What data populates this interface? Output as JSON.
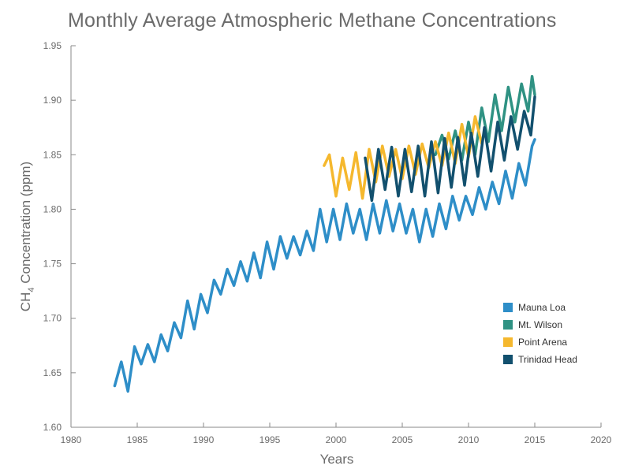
{
  "chart_data": {
    "type": "line",
    "title": "Monthly Average Atmospheric Methane Concentrations",
    "xlabel": "Years",
    "ylabel_main": "CH",
    "ylabel_sub": "4",
    "ylabel_rest": " Concentration (ppm)",
    "xlim": [
      1980,
      2020
    ],
    "ylim": [
      1.6,
      1.95
    ],
    "x_ticks": [
      1980,
      1985,
      1990,
      1995,
      2000,
      2005,
      2010,
      2015,
      2020
    ],
    "y_ticks": [
      "1.60",
      "1.65",
      "1.70",
      "1.75",
      "1.80",
      "1.85",
      "1.90",
      "1.95"
    ],
    "legend_position": "right",
    "grid": false,
    "series": [
      {
        "name": "Mauna Loa",
        "color": "#2e8ec8",
        "x": [
          1983.3,
          1983.8,
          1984.3,
          1984.8,
          1985.3,
          1985.8,
          1986.3,
          1986.8,
          1987.3,
          1987.8,
          1988.3,
          1988.8,
          1989.3,
          1989.8,
          1990.3,
          1990.8,
          1991.3,
          1991.8,
          1992.3,
          1992.8,
          1993.3,
          1993.8,
          1994.3,
          1994.8,
          1995.3,
          1995.8,
          1996.3,
          1996.8,
          1997.3,
          1997.8,
          1998.3,
          1998.8,
          1999.3,
          1999.8,
          2000.3,
          2000.8,
          2001.3,
          2001.8,
          2002.3,
          2002.8,
          2003.3,
          2003.8,
          2004.3,
          2004.8,
          2005.3,
          2005.8,
          2006.3,
          2006.8,
          2007.3,
          2007.8,
          2008.3,
          2008.8,
          2009.3,
          2009.8,
          2010.3,
          2010.8,
          2011.3,
          2011.8,
          2012.3,
          2012.8,
          2013.3,
          2013.8,
          2014.3,
          2014.8,
          2015.0
        ],
        "y": [
          1.638,
          1.66,
          1.633,
          1.674,
          1.658,
          1.676,
          1.66,
          1.685,
          1.67,
          1.696,
          1.682,
          1.716,
          1.69,
          1.722,
          1.705,
          1.735,
          1.722,
          1.745,
          1.73,
          1.752,
          1.734,
          1.76,
          1.737,
          1.77,
          1.745,
          1.775,
          1.755,
          1.775,
          1.758,
          1.78,
          1.762,
          1.8,
          1.77,
          1.8,
          1.772,
          1.805,
          1.778,
          1.8,
          1.772,
          1.805,
          1.778,
          1.808,
          1.78,
          1.805,
          1.778,
          1.8,
          1.77,
          1.8,
          1.775,
          1.805,
          1.782,
          1.812,
          1.79,
          1.812,
          1.795,
          1.82,
          1.8,
          1.825,
          1.805,
          1.835,
          1.81,
          1.842,
          1.822,
          1.858,
          1.864
        ]
      },
      {
        "name": "Mt. Wilson",
        "color": "#2f9283",
        "x": [
          2007.5,
          2008.0,
          2008.5,
          2009.0,
          2009.5,
          2010.0,
          2010.5,
          2011.0,
          2011.5,
          2012.0,
          2012.5,
          2013.0,
          2013.5,
          2014.0,
          2014.5,
          2014.8,
          2015.0
        ],
        "y": [
          1.85,
          1.868,
          1.846,
          1.872,
          1.845,
          1.88,
          1.85,
          1.893,
          1.862,
          1.905,
          1.872,
          1.912,
          1.88,
          1.915,
          1.89,
          1.922,
          1.905
        ]
      },
      {
        "name": "Point Arena",
        "color": "#f5b82e",
        "x": [
          1999.1,
          1999.5,
          2000.0,
          2000.5,
          2001.0,
          2001.5,
          2002.0,
          2002.5,
          2003.0,
          2003.5,
          2004.0,
          2004.5,
          2005.0,
          2005.5,
          2006.0,
          2006.5,
          2007.0,
          2007.5,
          2008.0,
          2008.5,
          2009.0,
          2009.5,
          2010.0,
          2010.5,
          2011.0
        ],
        "y": [
          1.84,
          1.85,
          1.812,
          1.847,
          1.818,
          1.852,
          1.81,
          1.855,
          1.825,
          1.858,
          1.83,
          1.855,
          1.828,
          1.858,
          1.832,
          1.86,
          1.838,
          1.862,
          1.84,
          1.87,
          1.842,
          1.878,
          1.848,
          1.885,
          1.86
        ]
      },
      {
        "name": "Trinidad Head",
        "color": "#12506e",
        "x": [
          2002.2,
          2002.7,
          2003.2,
          2003.7,
          2004.2,
          2004.7,
          2005.2,
          2005.7,
          2006.2,
          2006.7,
          2007.2,
          2007.7,
          2008.2,
          2008.7,
          2009.2,
          2009.7,
          2010.2,
          2010.7,
          2011.2,
          2011.7,
          2012.2,
          2012.7,
          2013.2,
          2013.7,
          2014.2,
          2014.7,
          2015.0
        ],
        "y": [
          1.847,
          1.808,
          1.855,
          1.818,
          1.857,
          1.812,
          1.855,
          1.816,
          1.858,
          1.812,
          1.862,
          1.815,
          1.865,
          1.82,
          1.866,
          1.822,
          1.87,
          1.83,
          1.875,
          1.835,
          1.88,
          1.845,
          1.885,
          1.855,
          1.89,
          1.868,
          1.903
        ]
      }
    ]
  }
}
